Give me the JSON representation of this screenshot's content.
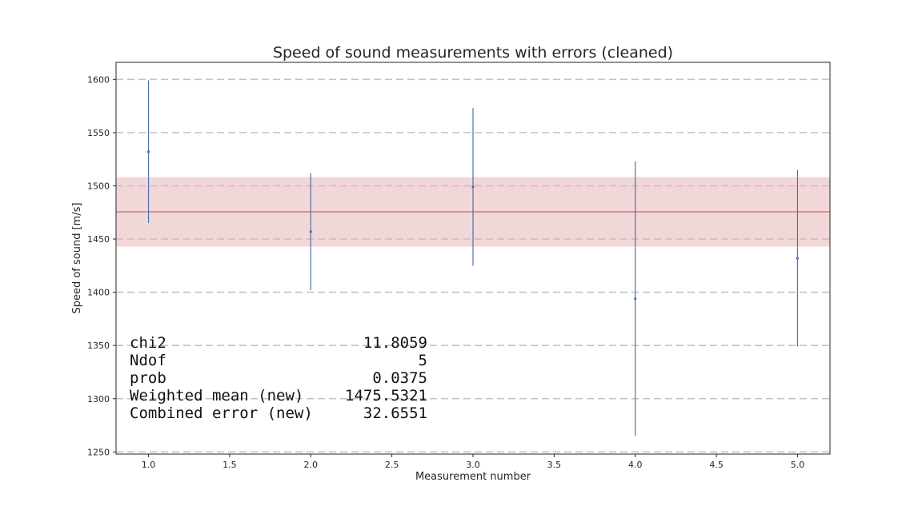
{
  "chart_data": {
    "type": "scatter",
    "title": "Speed of sound measurements with errors (cleaned)",
    "xlabel": "Measurement number",
    "ylabel": "Speed of sound [m/s]",
    "xlim": [
      0.8,
      5.2
    ],
    "ylim": [
      1248,
      1616
    ],
    "xticks": [
      1.0,
      1.5,
      2.0,
      2.5,
      3.0,
      3.5,
      4.0,
      4.5,
      5.0
    ],
    "xtick_labels": [
      "1.0",
      "1.5",
      "2.0",
      "2.5",
      "3.0",
      "3.5",
      "4.0",
      "4.5",
      "5.0"
    ],
    "yticks": [
      1250,
      1300,
      1350,
      1400,
      1450,
      1500,
      1550,
      1600
    ],
    "ytick_labels": [
      "1250",
      "1300",
      "1350",
      "1400",
      "1450",
      "1500",
      "1550",
      "1600"
    ],
    "grid": "y-dashed",
    "series": [
      {
        "x": [
          1,
          2,
          3,
          4,
          5
        ],
        "y": [
          1532,
          1457,
          1499,
          1394,
          1432
        ],
        "yerr": [
          67,
          55,
          74,
          129,
          83
        ],
        "color": "#4c72b0"
      }
    ],
    "band": {
      "center": 1475.5321,
      "halfwidth": 32.6551,
      "line_color": "#c44e52",
      "fill_color": "#f2d7d8"
    },
    "stats": {
      "rows": [
        {
          "label": "chi2",
          "value": "11.8059"
        },
        {
          "label": "Ndof",
          "value": "5"
        },
        {
          "label": "prob",
          "value": "0.0375"
        },
        {
          "label": "Weighted mean (new)",
          "value": "1475.5321"
        },
        {
          "label": "Combined error (new)",
          "value": "32.6551"
        }
      ]
    }
  }
}
